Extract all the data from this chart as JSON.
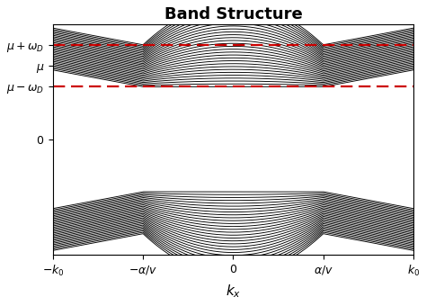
{
  "title": "Band Structure",
  "xlabel": "$k_x$",
  "ytick_labels": [
    "$\\mu + \\omega_D$",
    "$\\mu$",
    "$\\mu - \\omega_D$",
    "$0$"
  ],
  "xtick_positions": [
    -4.0,
    -2.0,
    0.0,
    2.0,
    4.0
  ],
  "xtick_labels": [
    "$-k_0$",
    "$-\\alpha/v$",
    "$0$",
    "$\\alpha/v$",
    "$k_0$"
  ],
  "mu": 3.5,
  "omega_D": 1.0,
  "k0": 4.0,
  "alpha_v": 2.0,
  "n_bands": 30,
  "line_color": "#000000",
  "dashed_color": "#cc0000",
  "dashed_linewidth": 1.6,
  "band_linewidth": 0.65,
  "background_color": "#ffffff"
}
